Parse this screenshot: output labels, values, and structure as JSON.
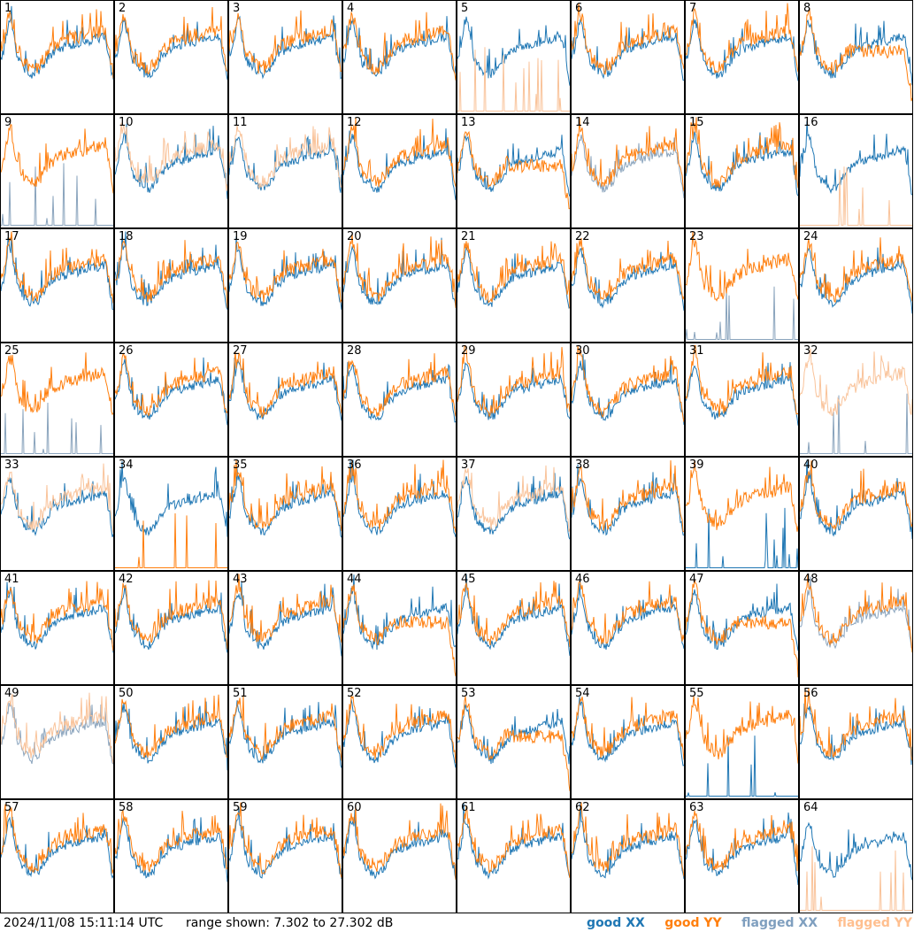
{
  "footer": {
    "timestamp": "2024/11/08 15:11:14 UTC",
    "range_text": "range shown: 7.302 to 27.302 dB"
  },
  "legend": [
    {
      "label": "good XX",
      "color": "#1f77b4"
    },
    {
      "label": "good YY",
      "color": "#ff7f0e"
    },
    {
      "label": "flagged XX",
      "color": "#7f9fbf"
    },
    {
      "label": "flagged YY",
      "color": "#ffbf8f"
    }
  ],
  "colors": {
    "good_xx": "#1f77b4",
    "good_yy": "#ff7f0e",
    "flagged_xx": "#8aa4bd",
    "flagged_yy": "#f9c39a"
  },
  "chart_data": {
    "type": "line",
    "grid": "8x8 small multiples, one panel per antenna",
    "ylim": [
      7.302,
      27.302
    ],
    "yunit": "dB",
    "panels": [
      {
        "id": "1",
        "xx": "good",
        "yy": "good",
        "xx_mode": "normal",
        "yy_mode": "normal"
      },
      {
        "id": "2",
        "xx": "good",
        "yy": "good",
        "xx_mode": "normal",
        "yy_mode": "normal"
      },
      {
        "id": "3",
        "xx": "good",
        "yy": "good",
        "xx_mode": "normal",
        "yy_mode": "normal"
      },
      {
        "id": "4",
        "xx": "good",
        "yy": "good",
        "xx_mode": "normal",
        "yy_mode": "normal"
      },
      {
        "id": "5",
        "xx": "good",
        "yy": "flagged",
        "xx_mode": "normal",
        "yy_mode": "spikes"
      },
      {
        "id": "6",
        "xx": "good",
        "yy": "good",
        "xx_mode": "normal",
        "yy_mode": "normal"
      },
      {
        "id": "7",
        "xx": "good",
        "yy": "good",
        "xx_mode": "normal",
        "yy_mode": "normal"
      },
      {
        "id": "8",
        "xx": "good",
        "yy": "good",
        "xx_mode": "normal",
        "yy_mode": "flat"
      },
      {
        "id": "9",
        "xx": "flagged",
        "yy": "good",
        "xx_mode": "spikes",
        "yy_mode": "normal"
      },
      {
        "id": "10",
        "xx": "good",
        "yy": "flagged",
        "xx_mode": "normal",
        "yy_mode": "normal"
      },
      {
        "id": "11",
        "xx": "good",
        "yy": "flagged",
        "xx_mode": "normal",
        "yy_mode": "normal"
      },
      {
        "id": "12",
        "xx": "good",
        "yy": "good",
        "xx_mode": "normal",
        "yy_mode": "normal"
      },
      {
        "id": "13",
        "xx": "good",
        "yy": "good",
        "xx_mode": "normal",
        "yy_mode": "flat"
      },
      {
        "id": "14",
        "xx": "flagged",
        "yy": "good",
        "xx_mode": "normal",
        "yy_mode": "normal"
      },
      {
        "id": "15",
        "xx": "good",
        "yy": "good",
        "xx_mode": "normal",
        "yy_mode": "normal"
      },
      {
        "id": "16",
        "xx": "good",
        "yy": "flagged",
        "xx_mode": "normal",
        "yy_mode": "spikes"
      },
      {
        "id": "17",
        "xx": "good",
        "yy": "good",
        "xx_mode": "normal",
        "yy_mode": "normal"
      },
      {
        "id": "18",
        "xx": "good",
        "yy": "good",
        "xx_mode": "normal",
        "yy_mode": "normal"
      },
      {
        "id": "19",
        "xx": "good",
        "yy": "good",
        "xx_mode": "normal",
        "yy_mode": "normal"
      },
      {
        "id": "20",
        "xx": "good",
        "yy": "good",
        "xx_mode": "normal",
        "yy_mode": "normal"
      },
      {
        "id": "21",
        "xx": "good",
        "yy": "good",
        "xx_mode": "normal",
        "yy_mode": "normal"
      },
      {
        "id": "22",
        "xx": "good",
        "yy": "good",
        "xx_mode": "normal",
        "yy_mode": "normal"
      },
      {
        "id": "23",
        "xx": "flagged",
        "yy": "good",
        "xx_mode": "spikes",
        "yy_mode": "normal"
      },
      {
        "id": "24",
        "xx": "good",
        "yy": "good",
        "xx_mode": "normal",
        "yy_mode": "normal"
      },
      {
        "id": "25",
        "xx": "flagged",
        "yy": "good",
        "xx_mode": "spikes",
        "yy_mode": "normal"
      },
      {
        "id": "26",
        "xx": "good",
        "yy": "good",
        "xx_mode": "normal",
        "yy_mode": "normal"
      },
      {
        "id": "27",
        "xx": "good",
        "yy": "good",
        "xx_mode": "normal",
        "yy_mode": "normal"
      },
      {
        "id": "28",
        "xx": "good",
        "yy": "good",
        "xx_mode": "normal",
        "yy_mode": "normal"
      },
      {
        "id": "29",
        "xx": "good",
        "yy": "good",
        "xx_mode": "normal",
        "yy_mode": "normal"
      },
      {
        "id": "30",
        "xx": "good",
        "yy": "good",
        "xx_mode": "normal",
        "yy_mode": "normal"
      },
      {
        "id": "31",
        "xx": "good",
        "yy": "good",
        "xx_mode": "normal",
        "yy_mode": "normal"
      },
      {
        "id": "32",
        "xx": "flagged",
        "yy": "flagged",
        "xx_mode": "spikes",
        "yy_mode": "normal"
      },
      {
        "id": "33",
        "xx": "good",
        "yy": "flagged",
        "xx_mode": "normal",
        "yy_mode": "normal"
      },
      {
        "id": "34",
        "xx": "good",
        "yy": "good",
        "xx_mode": "normal",
        "yy_mode": "spikes"
      },
      {
        "id": "35",
        "xx": "good",
        "yy": "good",
        "xx_mode": "normal",
        "yy_mode": "normal"
      },
      {
        "id": "36",
        "xx": "good",
        "yy": "good",
        "xx_mode": "normal",
        "yy_mode": "normal"
      },
      {
        "id": "37",
        "xx": "good",
        "yy": "flagged",
        "xx_mode": "normal",
        "yy_mode": "normal"
      },
      {
        "id": "38",
        "xx": "good",
        "yy": "good",
        "xx_mode": "normal",
        "yy_mode": "normal"
      },
      {
        "id": "39",
        "xx": "good",
        "yy": "good",
        "xx_mode": "spikes",
        "yy_mode": "normal"
      },
      {
        "id": "40",
        "xx": "good",
        "yy": "good",
        "xx_mode": "normal",
        "yy_mode": "normal"
      },
      {
        "id": "41",
        "xx": "good",
        "yy": "good",
        "xx_mode": "normal",
        "yy_mode": "normal"
      },
      {
        "id": "42",
        "xx": "good",
        "yy": "good",
        "xx_mode": "normal",
        "yy_mode": "normal"
      },
      {
        "id": "43",
        "xx": "good",
        "yy": "good",
        "xx_mode": "normal",
        "yy_mode": "normal"
      },
      {
        "id": "44",
        "xx": "good",
        "yy": "good",
        "xx_mode": "normal",
        "yy_mode": "flat"
      },
      {
        "id": "45",
        "xx": "good",
        "yy": "good",
        "xx_mode": "normal",
        "yy_mode": "normal"
      },
      {
        "id": "46",
        "xx": "good",
        "yy": "good",
        "xx_mode": "normal",
        "yy_mode": "normal"
      },
      {
        "id": "47",
        "xx": "good",
        "yy": "good",
        "xx_mode": "normal",
        "yy_mode": "flat"
      },
      {
        "id": "48",
        "xx": "flagged",
        "yy": "good",
        "xx_mode": "normal",
        "yy_mode": "normal"
      },
      {
        "id": "49",
        "xx": "flagged",
        "yy": "flagged",
        "xx_mode": "normal",
        "yy_mode": "normal"
      },
      {
        "id": "50",
        "xx": "good",
        "yy": "good",
        "xx_mode": "normal",
        "yy_mode": "normal"
      },
      {
        "id": "51",
        "xx": "good",
        "yy": "good",
        "xx_mode": "normal",
        "yy_mode": "normal"
      },
      {
        "id": "52",
        "xx": "good",
        "yy": "good",
        "xx_mode": "normal",
        "yy_mode": "normal"
      },
      {
        "id": "53",
        "xx": "good",
        "yy": "good",
        "xx_mode": "normal",
        "yy_mode": "flat"
      },
      {
        "id": "54",
        "xx": "good",
        "yy": "good",
        "xx_mode": "normal",
        "yy_mode": "normal"
      },
      {
        "id": "55",
        "xx": "good",
        "yy": "good",
        "xx_mode": "spikes",
        "yy_mode": "normal"
      },
      {
        "id": "56",
        "xx": "good",
        "yy": "good",
        "xx_mode": "normal",
        "yy_mode": "normal"
      },
      {
        "id": "57",
        "xx": "good",
        "yy": "good",
        "xx_mode": "normal",
        "yy_mode": "normal"
      },
      {
        "id": "58",
        "xx": "good",
        "yy": "good",
        "xx_mode": "normal",
        "yy_mode": "normal"
      },
      {
        "id": "59",
        "xx": "good",
        "yy": "good",
        "xx_mode": "normal",
        "yy_mode": "normal"
      },
      {
        "id": "60",
        "xx": "good",
        "yy": "good",
        "xx_mode": "normal",
        "yy_mode": "normal"
      },
      {
        "id": "61",
        "xx": "good",
        "yy": "good",
        "xx_mode": "normal",
        "yy_mode": "normal"
      },
      {
        "id": "62",
        "xx": "good",
        "yy": "good",
        "xx_mode": "normal",
        "yy_mode": "normal"
      },
      {
        "id": "63",
        "xx": "good",
        "yy": "good",
        "xx_mode": "normal",
        "yy_mode": "normal"
      },
      {
        "id": "64",
        "xx": "good",
        "yy": "flagged",
        "xx_mode": "normal",
        "yy_mode": "spikes"
      }
    ]
  }
}
